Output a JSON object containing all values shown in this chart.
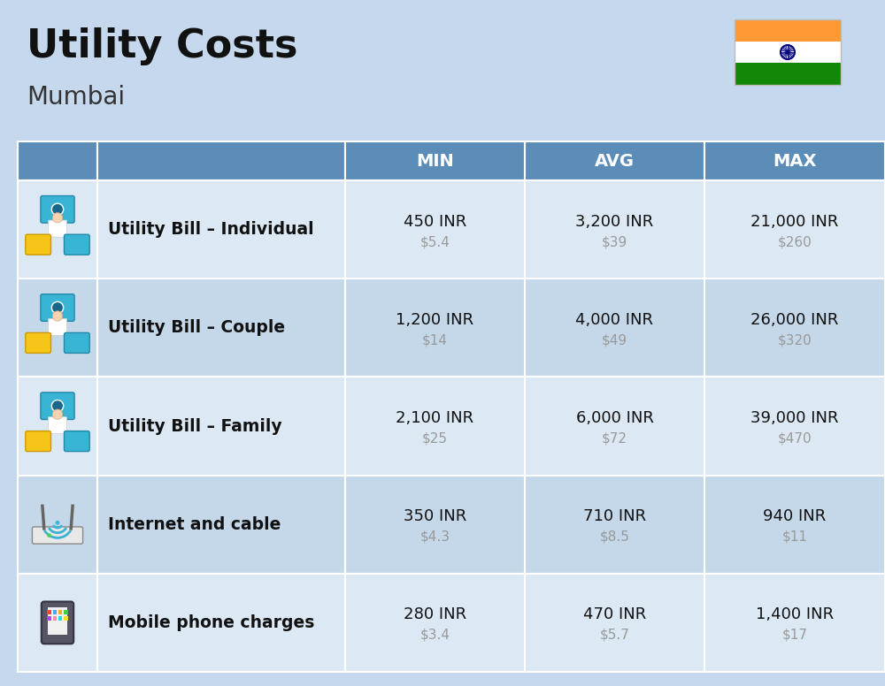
{
  "title": "Utility Costs",
  "subtitle": "Mumbai",
  "background_color": "#c5d8ed",
  "header_bg_color": "#5b8db8",
  "header_text_color": "#ffffff",
  "row_bg_color_1": "#dce9f5",
  "row_bg_color_2": "#c5d8ea",
  "header_labels": [
    "MIN",
    "AVG",
    "MAX"
  ],
  "rows": [
    {
      "label": "Utility Bill – Individual",
      "min_inr": "450 INR",
      "min_usd": "$5.4",
      "avg_inr": "3,200 INR",
      "avg_usd": "$39",
      "max_inr": "21,000 INR",
      "max_usd": "$260"
    },
    {
      "label": "Utility Bill – Couple",
      "min_inr": "1,200 INR",
      "min_usd": "$14",
      "avg_inr": "4,000 INR",
      "avg_usd": "$49",
      "max_inr": "26,000 INR",
      "max_usd": "$320"
    },
    {
      "label": "Utility Bill – Family",
      "min_inr": "2,100 INR",
      "min_usd": "$25",
      "avg_inr": "6,000 INR",
      "avg_usd": "$72",
      "max_inr": "39,000 INR",
      "max_usd": "$470"
    },
    {
      "label": "Internet and cable",
      "min_inr": "350 INR",
      "min_usd": "$4.3",
      "avg_inr": "710 INR",
      "avg_usd": "$8.5",
      "max_inr": "940 INR",
      "max_usd": "$11"
    },
    {
      "label": "Mobile phone charges",
      "min_inr": "280 INR",
      "min_usd": "$3.4",
      "avg_inr": "470 INR",
      "avg_usd": "$5.7",
      "max_inr": "1,400 INR",
      "max_usd": "$17"
    }
  ],
  "flag_colors": [
    "#ff9933",
    "#ffffff",
    "#138808"
  ],
  "flag_chakra_color": "#000080",
  "title_color": "#111111",
  "subtitle_color": "#333333",
  "label_color": "#111111",
  "value_color": "#111111",
  "usd_color": "#999999"
}
